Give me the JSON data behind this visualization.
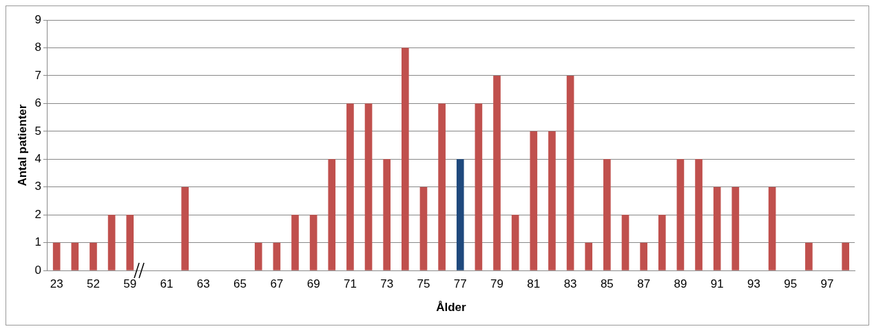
{
  "chart_data": {
    "type": "bar",
    "xlabel": "Ålder",
    "ylabel": "Antal patienter",
    "categories": [
      "23",
      null,
      "52",
      null,
      "59",
      null,
      "61",
      null,
      "63",
      null,
      "65",
      null,
      "67",
      null,
      "69",
      null,
      "71",
      null,
      "73",
      null,
      "75",
      null,
      "77",
      null,
      "79",
      null,
      "81",
      null,
      "83",
      null,
      "85",
      null,
      "87",
      null,
      "89",
      null,
      "91",
      null,
      "93",
      null,
      "95",
      null,
      "97",
      null
    ],
    "values": [
      1,
      1,
      1,
      2,
      2,
      0,
      0,
      3,
      0,
      0,
      0,
      1,
      1,
      2,
      2,
      4,
      6,
      6,
      4,
      8,
      3,
      6,
      4,
      6,
      7,
      2,
      5,
      5,
      7,
      1,
      4,
      2,
      1,
      2,
      4,
      4,
      3,
      3,
      0,
      3,
      0,
      1,
      0,
      1
    ],
    "colors": [
      "#c0504d",
      "#c0504d",
      "#c0504d",
      "#c0504d",
      "#c0504d",
      "#c0504d",
      "#c0504d",
      "#c0504d",
      "#c0504d",
      "#c0504d",
      "#c0504d",
      "#c0504d",
      "#c0504d",
      "#c0504d",
      "#c0504d",
      "#c0504d",
      "#c0504d",
      "#c0504d",
      "#c0504d",
      "#c0504d",
      "#c0504d",
      "#c0504d",
      "#1f497d",
      "#c0504d",
      "#c0504d",
      "#c0504d",
      "#c0504d",
      "#c0504d",
      "#c0504d",
      "#c0504d",
      "#c0504d",
      "#c0504d",
      "#c0504d",
      "#c0504d",
      "#c0504d",
      "#c0504d",
      "#c0504d",
      "#c0504d",
      "#c0504d",
      "#c0504d",
      "#c0504d",
      "#c0504d",
      "#c0504d",
      "#c0504d"
    ],
    "ylim": [
      0,
      9
    ],
    "yticks": [
      0,
      1,
      2,
      3,
      4,
      5,
      6,
      7,
      8,
      9
    ],
    "grid": "y"
  }
}
